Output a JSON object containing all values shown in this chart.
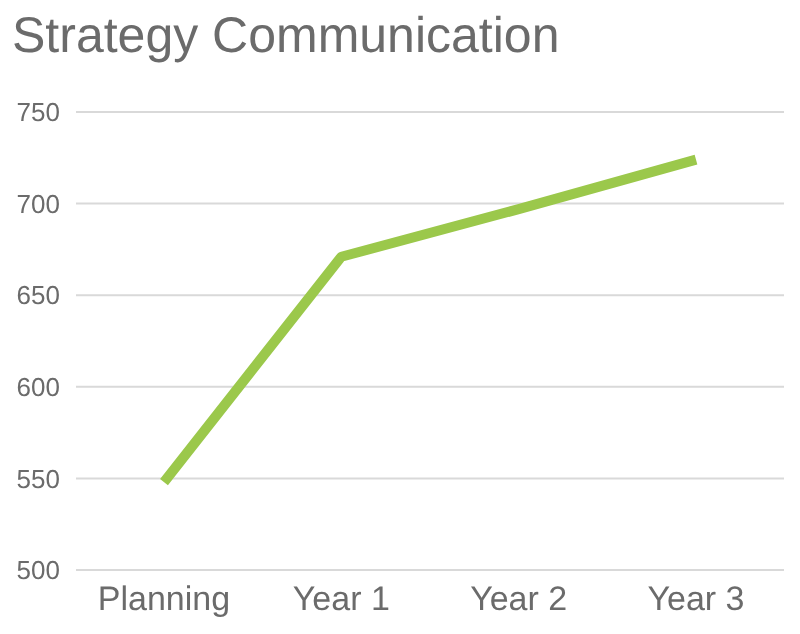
{
  "chart_data": {
    "type": "line",
    "title": "Strategy Communication",
    "categories": [
      "Planning",
      "Year 1",
      "Year 2",
      "Year 3"
    ],
    "series": [
      {
        "color": "#9bc84b",
        "values": [
          548,
          671,
          697,
          724
        ]
      }
    ],
    "ylim": [
      500,
      750
    ],
    "yticks": [
      500,
      550,
      600,
      650,
      700,
      750
    ],
    "grid": "y",
    "legend": false,
    "marker": "none",
    "line_style": "solid"
  }
}
